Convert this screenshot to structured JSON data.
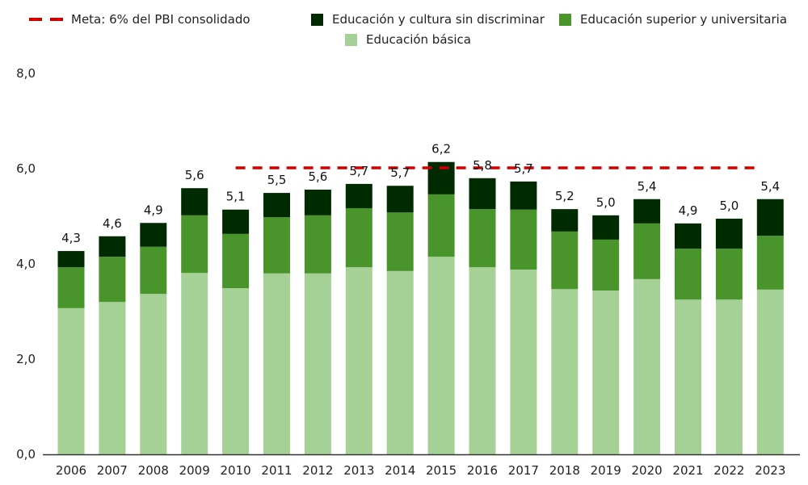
{
  "chart_data": {
    "type": "bar",
    "stacked": true,
    "title": "",
    "xlabel": "",
    "ylabel": "",
    "ylim": [
      0,
      8
    ],
    "yticks": [
      "0,0",
      "2,0",
      "4,0",
      "6,0",
      "8,0"
    ],
    "ytick_values": [
      0,
      2,
      4,
      6,
      8
    ],
    "grid": false,
    "legend_position": "top",
    "categories": [
      "2006",
      "2007",
      "2008",
      "2009",
      "2010",
      "2011",
      "2012",
      "2013",
      "2014",
      "2015",
      "2016",
      "2017",
      "2018",
      "2019",
      "2020",
      "2021",
      "2022",
      "2023"
    ],
    "series": [
      {
        "name": "Educación básica",
        "color": "#a5d096",
        "values": [
          3.07,
          3.2,
          3.37,
          3.81,
          3.49,
          3.8,
          3.8,
          3.93,
          3.85,
          4.15,
          3.93,
          3.88,
          3.47,
          3.44,
          3.68,
          3.25,
          3.25,
          3.46
        ]
      },
      {
        "name": "Educación superior y universitaria",
        "color": "#4a942c",
        "values": [
          0.86,
          0.95,
          0.99,
          1.21,
          1.14,
          1.18,
          1.22,
          1.24,
          1.23,
          1.31,
          1.22,
          1.26,
          1.21,
          1.07,
          1.17,
          1.07,
          1.07,
          1.13
        ]
      },
      {
        "name": "Educación y cultura sin discriminar",
        "color": "#002a00",
        "values": [
          0.34,
          0.43,
          0.5,
          0.57,
          0.51,
          0.51,
          0.54,
          0.51,
          0.56,
          0.68,
          0.65,
          0.59,
          0.47,
          0.51,
          0.51,
          0.53,
          0.63,
          0.77
        ]
      }
    ],
    "totals": [
      4.3,
      4.6,
      4.9,
      5.6,
      5.1,
      5.5,
      5.6,
      5.7,
      5.7,
      6.2,
      5.8,
      5.7,
      5.2,
      5.0,
      5.4,
      4.9,
      5.0,
      5.4
    ],
    "total_labels": [
      "4,3",
      "4,6",
      "4,9",
      "5,6",
      "5,1",
      "5,5",
      "5,6",
      "5,7",
      "5,7",
      "6,2",
      "5,8",
      "5,7",
      "5,2",
      "5,0",
      "5,4",
      "4,9",
      "5,0",
      "5,4"
    ],
    "reference_line": {
      "name": "Meta: 6% del PBI consolidado",
      "value": 6.0,
      "color": "#cc0000",
      "style": "dashed",
      "from_category": "2010",
      "to_category": "2023"
    }
  },
  "legend": {
    "meta": "Meta: 6% del PBI consolidado",
    "cultura": "Educación y cultura sin discriminar",
    "superior": "Educación superior y universitaria",
    "basica": "Educación básica"
  },
  "colors": {
    "basica": "#a5d096",
    "superior": "#4a942c",
    "cultura": "#002a00",
    "meta": "#cc0000",
    "axis": "#333333"
  }
}
